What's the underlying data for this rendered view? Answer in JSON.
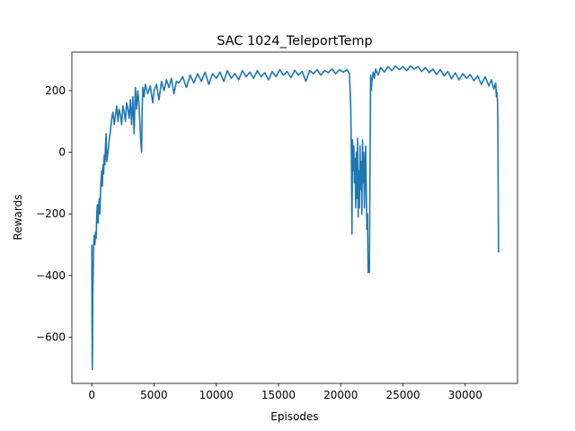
{
  "chart_data": {
    "type": "line",
    "title": "SAC 1024_TeleportTemp",
    "xlabel": "Episodes",
    "ylabel": "Rewards",
    "xlim": [
      -1600,
      34200
    ],
    "ylim": [
      -750,
      325
    ],
    "xticks": [
      0,
      5000,
      10000,
      15000,
      20000,
      25000,
      30000
    ],
    "yticks": [
      -600,
      -400,
      -200,
      0,
      200
    ],
    "grid": false,
    "color": "#1f77b4",
    "series": [
      {
        "values_xy": [
          [
            0,
            -300
          ],
          [
            20,
            -520
          ],
          [
            40,
            -705
          ],
          [
            60,
            -640
          ],
          [
            80,
            -460
          ],
          [
            100,
            -420
          ],
          [
            150,
            -300
          ],
          [
            200,
            -270
          ],
          [
            250,
            -300
          ],
          [
            300,
            -260
          ],
          [
            350,
            -280
          ],
          [
            400,
            -200
          ],
          [
            450,
            -170
          ],
          [
            500,
            -230
          ],
          [
            550,
            -180
          ],
          [
            600,
            -150
          ],
          [
            650,
            -200
          ],
          [
            700,
            -130
          ],
          [
            750,
            -90
          ],
          [
            800,
            -60
          ],
          [
            850,
            -110
          ],
          [
            900,
            -40
          ],
          [
            950,
            -70
          ],
          [
            1000,
            -10
          ],
          [
            1050,
            -40
          ],
          [
            1100,
            20
          ],
          [
            1150,
            60
          ],
          [
            1200,
            -30
          ],
          [
            1300,
            0
          ],
          [
            1400,
            40
          ],
          [
            1500,
            70
          ],
          [
            1600,
            110
          ],
          [
            1700,
            130
          ],
          [
            1800,
            90
          ],
          [
            1900,
            120
          ],
          [
            2000,
            150
          ],
          [
            2100,
            100
          ],
          [
            2200,
            140
          ],
          [
            2300,
            120
          ],
          [
            2400,
            90
          ],
          [
            2500,
            150
          ],
          [
            2600,
            130
          ],
          [
            2700,
            100
          ],
          [
            2800,
            160
          ],
          [
            2900,
            140
          ],
          [
            3000,
            110
          ],
          [
            3100,
            170
          ],
          [
            3200,
            90
          ],
          [
            3300,
            180
          ],
          [
            3400,
            60
          ],
          [
            3500,
            210
          ],
          [
            3600,
            140
          ],
          [
            3700,
            200
          ],
          [
            3800,
            150
          ],
          [
            3900,
            60
          ],
          [
            4000,
            0
          ],
          [
            4050,
            140
          ],
          [
            4100,
            210
          ],
          [
            4200,
            180
          ],
          [
            4300,
            220
          ],
          [
            4500,
            190
          ],
          [
            4700,
            215
          ],
          [
            4900,
            160
          ],
          [
            5000,
            200
          ],
          [
            5200,
            220
          ],
          [
            5400,
            170
          ],
          [
            5600,
            230
          ],
          [
            5800,
            200
          ],
          [
            6000,
            235
          ],
          [
            6200,
            210
          ],
          [
            6400,
            240
          ],
          [
            6600,
            190
          ],
          [
            6800,
            230
          ],
          [
            7000,
            225
          ],
          [
            7300,
            245
          ],
          [
            7600,
            210
          ],
          [
            7900,
            250
          ],
          [
            8200,
            225
          ],
          [
            8500,
            255
          ],
          [
            8800,
            230
          ],
          [
            9100,
            260
          ],
          [
            9400,
            220
          ],
          [
            9700,
            255
          ],
          [
            10000,
            240
          ],
          [
            10300,
            260
          ],
          [
            10600,
            230
          ],
          [
            10900,
            265
          ],
          [
            11200,
            240
          ],
          [
            11500,
            255
          ],
          [
            11800,
            235
          ],
          [
            12100,
            265
          ],
          [
            12400,
            245
          ],
          [
            12700,
            260
          ],
          [
            13000,
            240
          ],
          [
            13300,
            265
          ],
          [
            13600,
            245
          ],
          [
            13900,
            258
          ],
          [
            14200,
            235
          ],
          [
            14500,
            262
          ],
          [
            14800,
            245
          ],
          [
            15100,
            268
          ],
          [
            15400,
            250
          ],
          [
            15700,
            262
          ],
          [
            16000,
            242
          ],
          [
            16300,
            266
          ],
          [
            16600,
            250
          ],
          [
            16900,
            262
          ],
          [
            17200,
            230
          ],
          [
            17500,
            265
          ],
          [
            17800,
            255
          ],
          [
            18100,
            268
          ],
          [
            18400,
            250
          ],
          [
            18700,
            265
          ],
          [
            19000,
            258
          ],
          [
            19300,
            270
          ],
          [
            19600,
            255
          ],
          [
            19900,
            268
          ],
          [
            20200,
            260
          ],
          [
            20500,
            268
          ],
          [
            20700,
            255
          ],
          [
            20800,
            150
          ],
          [
            20850,
            20
          ],
          [
            20900,
            -265
          ],
          [
            20950,
            40
          ],
          [
            21000,
            -60
          ],
          [
            21050,
            20
          ],
          [
            21100,
            -100
          ],
          [
            21150,
            -20
          ],
          [
            21200,
            -180
          ],
          [
            21250,
            0
          ],
          [
            21300,
            -150
          ],
          [
            21350,
            45
          ],
          [
            21400,
            -210
          ],
          [
            21450,
            -60
          ],
          [
            21500,
            -180
          ],
          [
            21550,
            20
          ],
          [
            21600,
            -120
          ],
          [
            21650,
            -30
          ],
          [
            21700,
            -200
          ],
          [
            21750,
            40
          ],
          [
            21800,
            -100
          ],
          [
            21850,
            0
          ],
          [
            21900,
            -180
          ],
          [
            21950,
            -80
          ],
          [
            22000,
            20
          ],
          [
            22050,
            -120
          ],
          [
            22100,
            -250
          ],
          [
            22150,
            -200
          ],
          [
            22200,
            -390
          ],
          [
            22250,
            -350
          ],
          [
            22300,
            -390
          ],
          [
            22350,
            -50
          ],
          [
            22400,
            250
          ],
          [
            22450,
            200
          ],
          [
            22500,
            230
          ],
          [
            22600,
            260
          ],
          [
            22700,
            240
          ],
          [
            22800,
            270
          ],
          [
            23000,
            250
          ],
          [
            23200,
            275
          ],
          [
            23500,
            260
          ],
          [
            23800,
            278
          ],
          [
            24100,
            265
          ],
          [
            24400,
            280
          ],
          [
            24700,
            268
          ],
          [
            25000,
            278
          ],
          [
            25300,
            265
          ],
          [
            25600,
            280
          ],
          [
            25900,
            270
          ],
          [
            26200,
            278
          ],
          [
            26500,
            262
          ],
          [
            26800,
            275
          ],
          [
            27100,
            258
          ],
          [
            27400,
            270
          ],
          [
            27700,
            252
          ],
          [
            28000,
            268
          ],
          [
            28300,
            248
          ],
          [
            28600,
            262
          ],
          [
            28900,
            238
          ],
          [
            29200,
            258
          ],
          [
            29500,
            235
          ],
          [
            29800,
            255
          ],
          [
            30100,
            240
          ],
          [
            30400,
            252
          ],
          [
            30700,
            232
          ],
          [
            31000,
            248
          ],
          [
            31300,
            220
          ],
          [
            31600,
            245
          ],
          [
            31900,
            215
          ],
          [
            32100,
            235
          ],
          [
            32300,
            205
          ],
          [
            32450,
            225
          ],
          [
            32500,
            180
          ],
          [
            32550,
            195
          ],
          [
            32600,
            160
          ],
          [
            32620,
            90
          ],
          [
            32650,
            -150
          ],
          [
            32680,
            -325
          ]
        ]
      }
    ]
  }
}
